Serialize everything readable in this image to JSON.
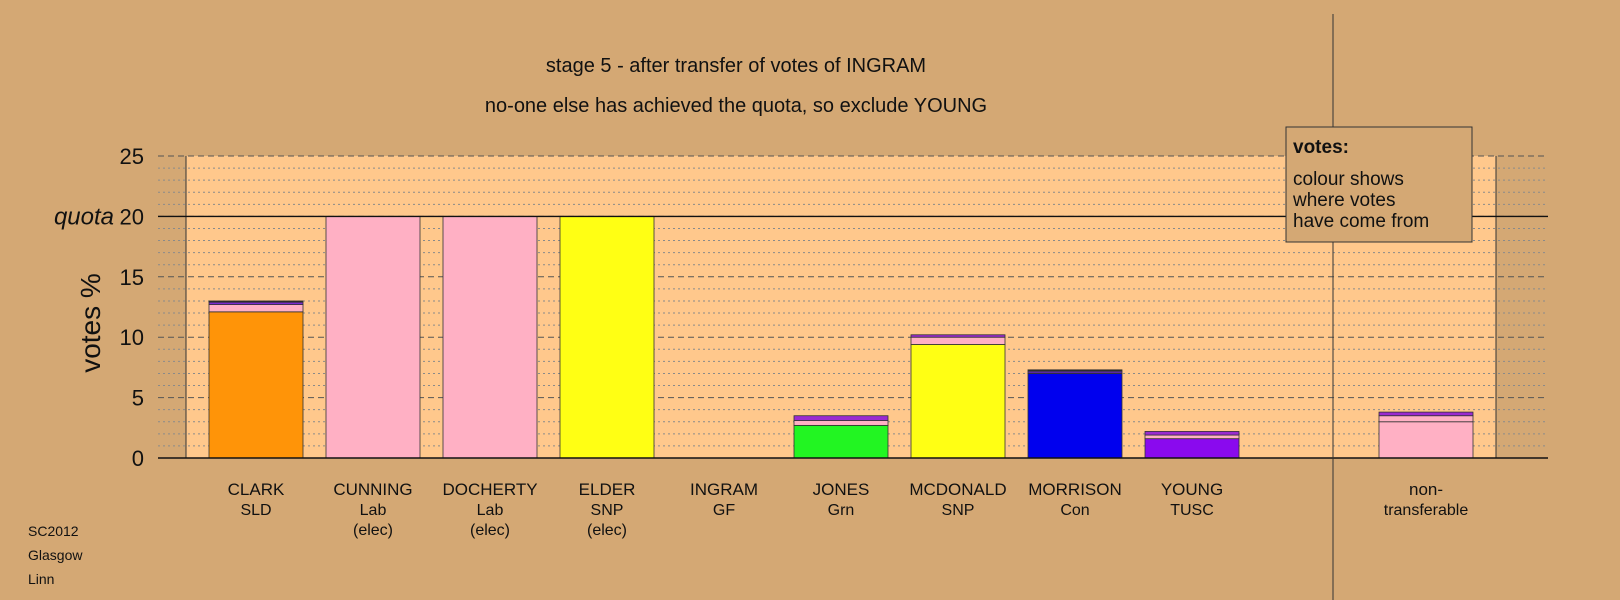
{
  "chart_data": {
    "type": "bar",
    "title": "stage 5 - after transfer of votes of INGRAM",
    "subtitle": "no-one else has achieved the quota, so exclude YOUNG",
    "ylabel": "votes %",
    "ylim": [
      0,
      25
    ],
    "yticks": [
      "0",
      "5",
      "10",
      "15",
      "20",
      "25"
    ],
    "quota": {
      "label": "quota",
      "value": 20
    },
    "grid": true,
    "legend": {
      "title": "votes:",
      "lines": [
        "colour shows",
        "where votes",
        "have come from"
      ],
      "position": "top-right"
    },
    "candidates": [
      {
        "lines": [
          "CLARK",
          "SLD"
        ],
        "segments": [
          {
            "value": 12.1,
            "color": "#FF9408"
          },
          {
            "value": 0.6,
            "color": "#FFB0C4"
          },
          {
            "value": 0.2,
            "color": "#7A2AD0"
          },
          {
            "value": 0.1,
            "color": "#222222"
          }
        ]
      },
      {
        "lines": [
          "CUNNING",
          "Lab",
          "(elec)"
        ],
        "segments": [
          {
            "value": 20.0,
            "color": "#FFB0C4"
          }
        ]
      },
      {
        "lines": [
          "DOCHERTY",
          "Lab",
          "(elec)"
        ],
        "segments": [
          {
            "value": 20.0,
            "color": "#FFB0C4"
          }
        ]
      },
      {
        "lines": [
          "ELDER",
          "SNP",
          "(elec)"
        ],
        "segments": [
          {
            "value": 20.0,
            "color": "#FFFF14"
          }
        ]
      },
      {
        "lines": [
          "INGRAM",
          "GF"
        ],
        "segments": []
      },
      {
        "lines": [
          "JONES",
          "Grn"
        ],
        "segments": [
          {
            "value": 2.7,
            "color": "#22F522"
          },
          {
            "value": 0.4,
            "color": "#FFB0C4"
          },
          {
            "value": 0.4,
            "color": "#9A2AD0"
          }
        ]
      },
      {
        "lines": [
          "MCDONALD",
          "SNP"
        ],
        "segments": [
          {
            "value": 9.4,
            "color": "#FFFF14"
          },
          {
            "value": 0.6,
            "color": "#FFB0C4"
          },
          {
            "value": 0.2,
            "color": "#9A2AD0"
          }
        ]
      },
      {
        "lines": [
          "MORRISON",
          "Con"
        ],
        "segments": [
          {
            "value": 7.0,
            "color": "#0000EE"
          },
          {
            "value": 0.2,
            "color": "#5A2AA0"
          },
          {
            "value": 0.1,
            "color": "#222222"
          }
        ]
      },
      {
        "lines": [
          "YOUNG",
          "TUSC"
        ],
        "segments": [
          {
            "value": 1.6,
            "color": "#8A0AEE"
          },
          {
            "value": 0.3,
            "color": "#FFB0C4"
          },
          {
            "value": 0.3,
            "color": "#9A2AD0"
          }
        ]
      },
      {
        "lines": [
          "non-",
          "transferable"
        ],
        "segments": [
          {
            "value": 3.0,
            "color": "#FFB0C4"
          },
          {
            "value": 0.5,
            "color": "#FFB0C4"
          },
          {
            "value": 0.3,
            "color": "#9A2AD0"
          }
        ]
      }
    ]
  },
  "footer": {
    "line1": "SC2012",
    "line2": "Glasgow",
    "line3": "Linn"
  }
}
